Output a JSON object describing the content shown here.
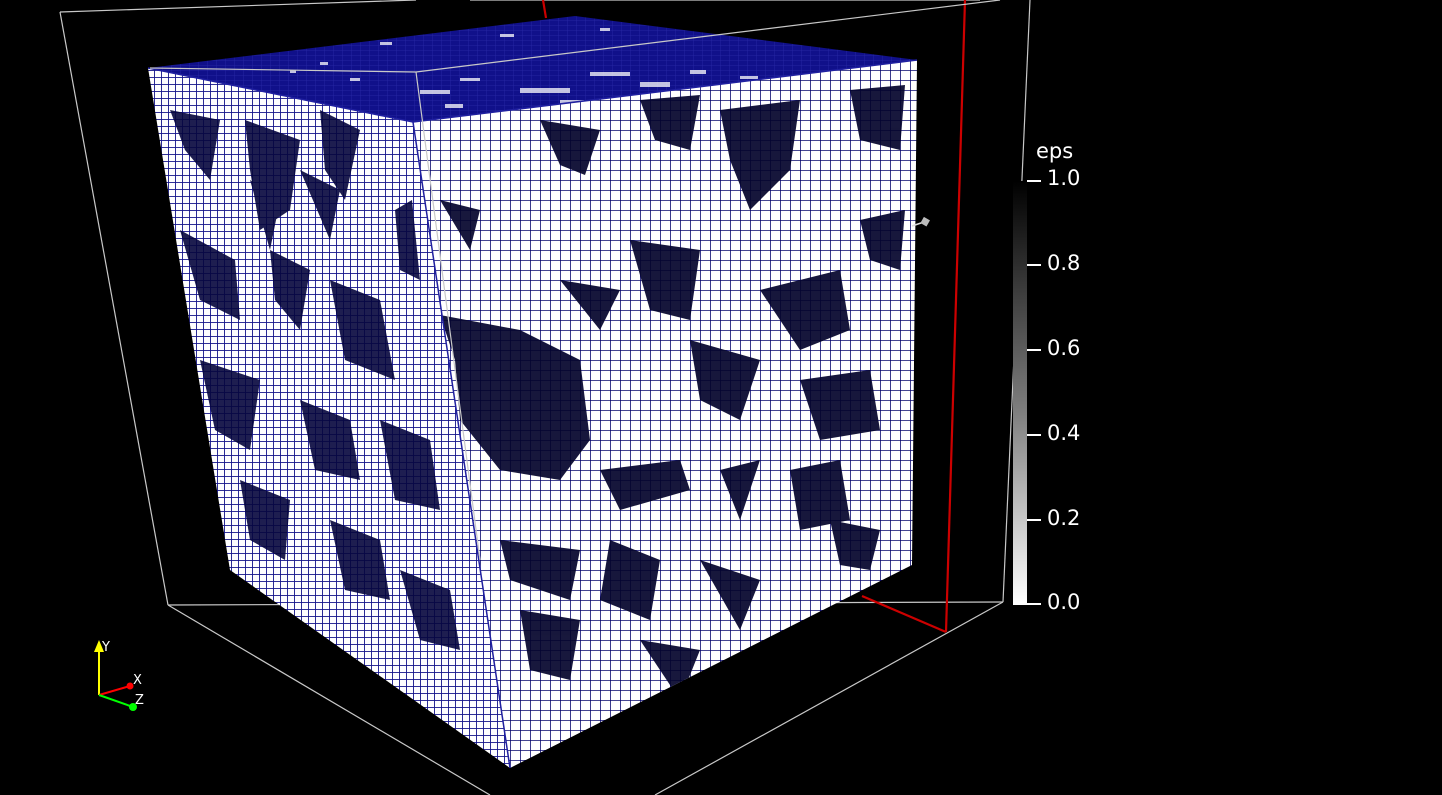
{
  "viewport": {
    "background": "#000000"
  },
  "volume": {
    "mesh_edge_color": "#000080",
    "cell_fill_color": "#ffffff",
    "bounding_box_color": "#c8c8c8",
    "highlight_edge_color": "#cc0000"
  },
  "colorbar": {
    "title": "eps",
    "min": 0.0,
    "max": 1.0,
    "ticks": [
      {
        "value": 1.0,
        "label": "1.0"
      },
      {
        "value": 0.8,
        "label": "0.8"
      },
      {
        "value": 0.6,
        "label": "0.6"
      },
      {
        "value": 0.4,
        "label": "0.4"
      },
      {
        "value": 0.2,
        "label": "0.2"
      },
      {
        "value": 0.0,
        "label": "0.0"
      }
    ],
    "color_high": "#000000",
    "color_low": "#ffffff"
  },
  "orientation_axes": {
    "labels": [
      "Y",
      "X",
      "Z"
    ],
    "colors": {
      "Y": "#ffff00",
      "X": "#ff0000",
      "Z": "#00ff00"
    }
  }
}
